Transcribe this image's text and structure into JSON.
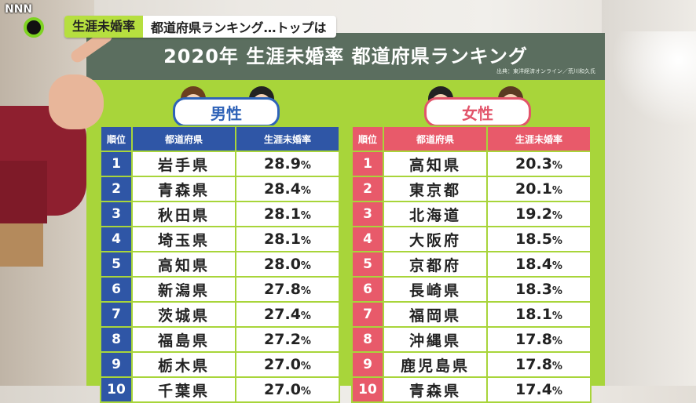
{
  "logo": {
    "text": "NNN"
  },
  "caption": {
    "tag": "生涯未婚率",
    "text": "都道府県ランキング…トップは"
  },
  "board": {
    "title": "2020年 生涯未婚率 都道府県ランキング",
    "source": "出典：東洋経済オンライン／荒川和久氏"
  },
  "male": {
    "label": "男性",
    "headers": {
      "rank": "順位",
      "pref": "都道府県",
      "rate": "生涯未婚率"
    },
    "rows": [
      {
        "rank": "1",
        "pref": "岩手県",
        "rate": "28.9",
        "unit": "%"
      },
      {
        "rank": "2",
        "pref": "青森県",
        "rate": "28.4",
        "unit": "%"
      },
      {
        "rank": "3",
        "pref": "秋田県",
        "rate": "28.1",
        "unit": "%"
      },
      {
        "rank": "4",
        "pref": "埼玉県",
        "rate": "28.1",
        "unit": "%"
      },
      {
        "rank": "5",
        "pref": "高知県",
        "rate": "28.0",
        "unit": "%"
      },
      {
        "rank": "6",
        "pref": "新潟県",
        "rate": "27.8",
        "unit": "%"
      },
      {
        "rank": "7",
        "pref": "茨城県",
        "rate": "27.4",
        "unit": "%"
      },
      {
        "rank": "8",
        "pref": "福島県",
        "rate": "27.2",
        "unit": "%"
      },
      {
        "rank": "9",
        "pref": "栃木県",
        "rate": "27.0",
        "unit": "%"
      },
      {
        "rank": "10",
        "pref": "千葉県",
        "rate": "27.0",
        "unit": "%"
      }
    ]
  },
  "female": {
    "label": "女性",
    "headers": {
      "rank": "順位",
      "pref": "都道府県",
      "rate": "生涯未婚率"
    },
    "rows": [
      {
        "rank": "1",
        "pref": "高知県",
        "rate": "20.3",
        "unit": "%"
      },
      {
        "rank": "2",
        "pref": "東京都",
        "rate": "20.1",
        "unit": "%"
      },
      {
        "rank": "3",
        "pref": "北海道",
        "rate": "19.2",
        "unit": "%"
      },
      {
        "rank": "4",
        "pref": "大阪府",
        "rate": "18.5",
        "unit": "%"
      },
      {
        "rank": "5",
        "pref": "京都府",
        "rate": "18.4",
        "unit": "%"
      },
      {
        "rank": "6",
        "pref": "長崎県",
        "rate": "18.3",
        "unit": "%"
      },
      {
        "rank": "7",
        "pref": "福岡県",
        "rate": "18.1",
        "unit": "%"
      },
      {
        "rank": "8",
        "pref": "沖縄県",
        "rate": "17.8",
        "unit": "%"
      },
      {
        "rank": "9",
        "pref": "鹿児島県",
        "rate": "17.8",
        "unit": "%"
      },
      {
        "rank": "10",
        "pref": "青森県",
        "rate": "17.4",
        "unit": "%"
      }
    ]
  },
  "colors": {
    "male": "#2f56a6",
    "female": "#e85a6a",
    "board": "#a8d53a",
    "header": "#5b6e5f",
    "tag": "#b6df3f"
  },
  "icons": [
    "male-face-icon",
    "female-face-icon",
    "logo-ring-icon"
  ]
}
